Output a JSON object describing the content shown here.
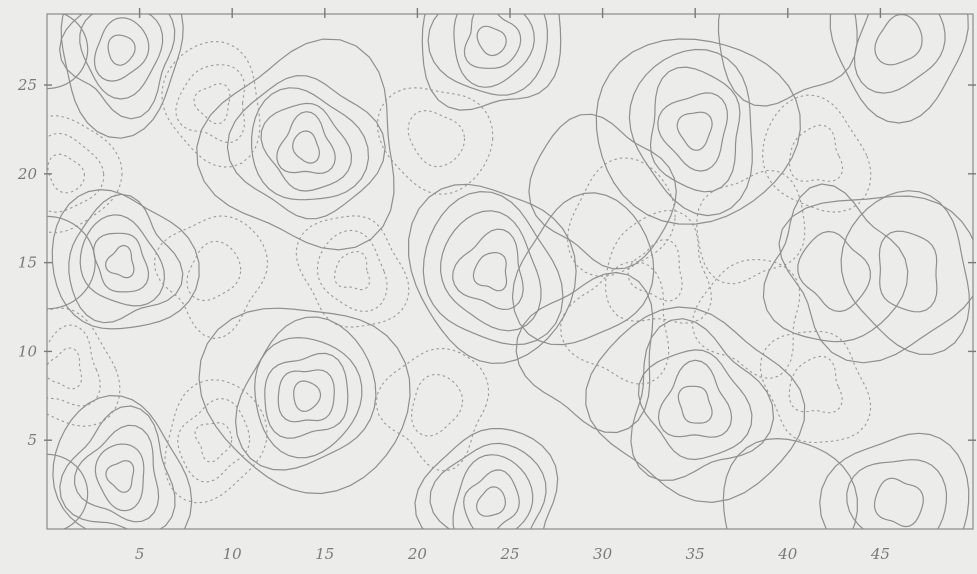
{
  "chart_data": {
    "type": "contour",
    "title": "",
    "xlabel": "",
    "ylabel": "",
    "xlim": [
      0,
      50
    ],
    "ylim": [
      0,
      29
    ],
    "x_ticks": [
      "5",
      "10",
      "15",
      "20",
      "25",
      "30",
      "35",
      "40",
      "45"
    ],
    "y_ticks": [
      "5",
      "10",
      "15",
      "20",
      "25"
    ],
    "grid": false,
    "line_styles": {
      "positive": "solid",
      "negative": "dotted"
    },
    "colors": {
      "background": "#ececea",
      "lines": "#8f8f8f",
      "labels": "#7a7a7a"
    },
    "maxima": [
      {
        "x": 4,
        "y": 27,
        "levels": 5
      },
      {
        "x": 4,
        "y": 3,
        "levels": 5
      },
      {
        "x": 4,
        "y": 15,
        "levels": 5
      },
      {
        "x": 14,
        "y": 21.5,
        "levels": 5
      },
      {
        "x": 14,
        "y": 7.5,
        "levels": 5
      },
      {
        "x": 24,
        "y": 27.5,
        "levels": 5
      },
      {
        "x": 24,
        "y": 1.5,
        "levels": 5
      },
      {
        "x": 24,
        "y": 14.5,
        "levels": 4
      },
      {
        "x": 35,
        "y": 22.5,
        "levels": 4
      },
      {
        "x": 35,
        "y": 7,
        "levels": 4
      },
      {
        "x": 42.5,
        "y": 14.5,
        "levels": 2
      },
      {
        "x": 46.5,
        "y": 14.5,
        "levels": 2
      },
      {
        "x": 30,
        "y": 19,
        "levels": 1
      },
      {
        "x": 29.5,
        "y": 10,
        "levels": 1
      },
      {
        "x": 29,
        "y": 14.5,
        "levels": 1
      },
      {
        "x": 46,
        "y": 27.5,
        "levels": 3
      },
      {
        "x": 46,
        "y": 1.5,
        "levels": 3
      },
      {
        "x": 40,
        "y": 28,
        "levels": 1
      },
      {
        "x": 40,
        "y": 1,
        "levels": 1
      }
    ],
    "minima": [
      {
        "x": 16.5,
        "y": 14.5,
        "levels": 3
      },
      {
        "x": 21,
        "y": 22,
        "levels": 2
      },
      {
        "x": 21,
        "y": 7,
        "levels": 2
      },
      {
        "x": 31,
        "y": 17.5,
        "levels": 1
      },
      {
        "x": 31,
        "y": 11.5,
        "levels": 1
      },
      {
        "x": 33,
        "y": 14.5,
        "levels": 2
      },
      {
        "x": 38,
        "y": 17,
        "levels": 1
      },
      {
        "x": 38,
        "y": 12,
        "levels": 1
      },
      {
        "x": 41.5,
        "y": 21,
        "levels": 2
      },
      {
        "x": 41.5,
        "y": 8,
        "levels": 2
      },
      {
        "x": 9,
        "y": 24,
        "levels": 3
      },
      {
        "x": 9,
        "y": 5,
        "levels": 3
      },
      {
        "x": 9,
        "y": 14.5,
        "levels": 2
      },
      {
        "x": 1,
        "y": 20,
        "levels": 3
      },
      {
        "x": 1,
        "y": 9,
        "levels": 3
      }
    ]
  }
}
